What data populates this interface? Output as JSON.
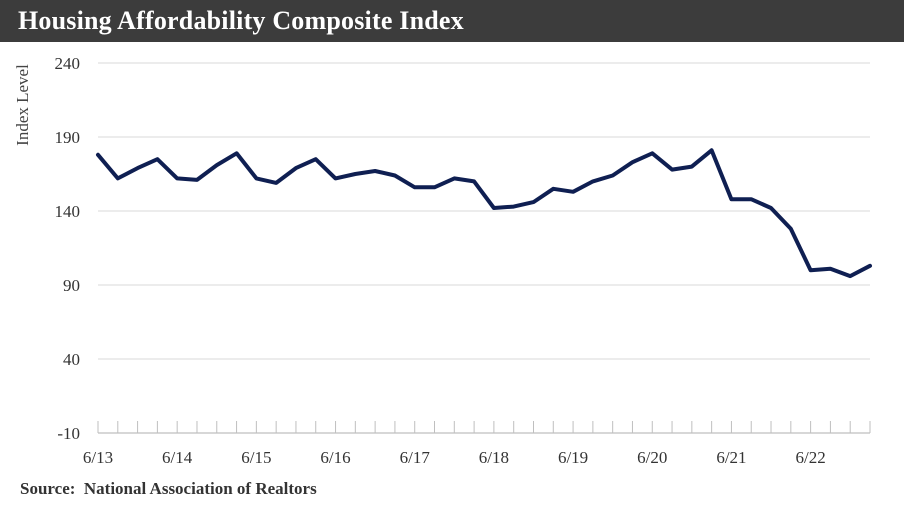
{
  "title": "Housing Affordability Composite Index",
  "source": "Source:  National Association of Realtors",
  "colors": {
    "title_bar": "#3c3c3c",
    "line": "#0f1f52",
    "grid": "#d9d9d9"
  },
  "chart_data": {
    "type": "line",
    "title": "Housing Affordability Composite Index",
    "ylabel": "Index Level",
    "xlabel": "",
    "ylim": [
      -10,
      240
    ],
    "yticks": [
      "240",
      "190",
      "140",
      "90",
      "40",
      "-10"
    ],
    "xticks": [
      "6/13",
      "6/14",
      "6/15",
      "6/16",
      "6/17",
      "6/18",
      "6/19",
      "6/20",
      "6/21",
      "6/22"
    ],
    "grid": true,
    "x": [
      "6/13",
      "9/13",
      "12/13",
      "3/14",
      "6/14",
      "9/14",
      "12/14",
      "3/15",
      "6/15",
      "9/15",
      "12/15",
      "3/16",
      "6/16",
      "9/16",
      "12/16",
      "3/17",
      "6/17",
      "9/17",
      "12/17",
      "3/18",
      "6/18",
      "9/18",
      "12/18",
      "3/19",
      "6/19",
      "9/19",
      "12/19",
      "3/20",
      "6/20",
      "9/20",
      "12/20",
      "3/21",
      "6/21",
      "9/21",
      "12/21",
      "3/22",
      "6/22",
      "9/22",
      "12/22",
      "3/23"
    ],
    "series": [
      {
        "values": [
          178,
          162,
          169,
          175,
          162,
          161,
          171,
          179,
          162,
          159,
          169,
          175,
          162,
          165,
          167,
          164,
          156,
          156,
          162,
          160,
          142,
          143,
          146,
          155,
          153,
          160,
          164,
          173,
          179,
          168,
          170,
          181,
          148,
          148,
          142,
          128,
          100,
          101,
          96,
          103
        ]
      }
    ]
  }
}
